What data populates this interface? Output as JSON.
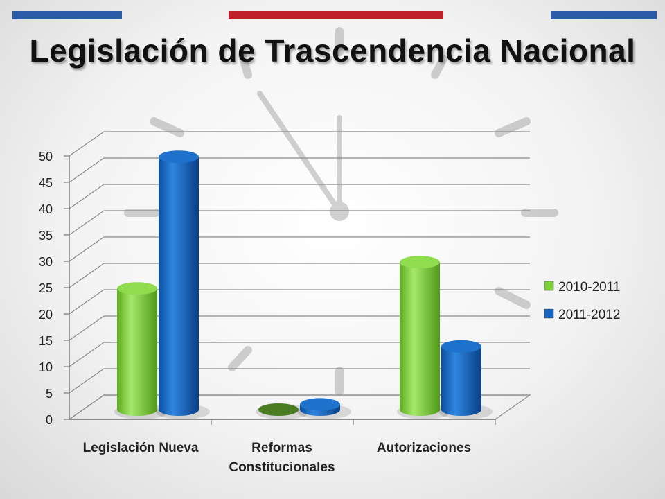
{
  "colors": {
    "stripe_blue": "#2a5aa8",
    "stripe_red": "#c0202c",
    "series1": "#7ed03a",
    "series2": "#1565c0"
  },
  "chart_data": {
    "type": "bar",
    "title": "Legislación de Trascendencia Nacional",
    "categories": [
      [
        "Legislación Nueva"
      ],
      [
        "Reformas",
        "Constitucionales"
      ],
      [
        "Autorizaciones"
      ]
    ],
    "series": [
      {
        "name": "2010-2011",
        "values": [
          23,
          0,
          28
        ]
      },
      {
        "name": "2011-2012",
        "values": [
          48,
          1,
          12
        ]
      }
    ],
    "ylim": [
      0,
      50
    ],
    "yticks": [
      "0",
      "5",
      "10",
      "15",
      "20",
      "25",
      "30",
      "35",
      "40",
      "45",
      "50"
    ],
    "grid": true,
    "legend": "right",
    "xlabel": "",
    "ylabel": ""
  }
}
